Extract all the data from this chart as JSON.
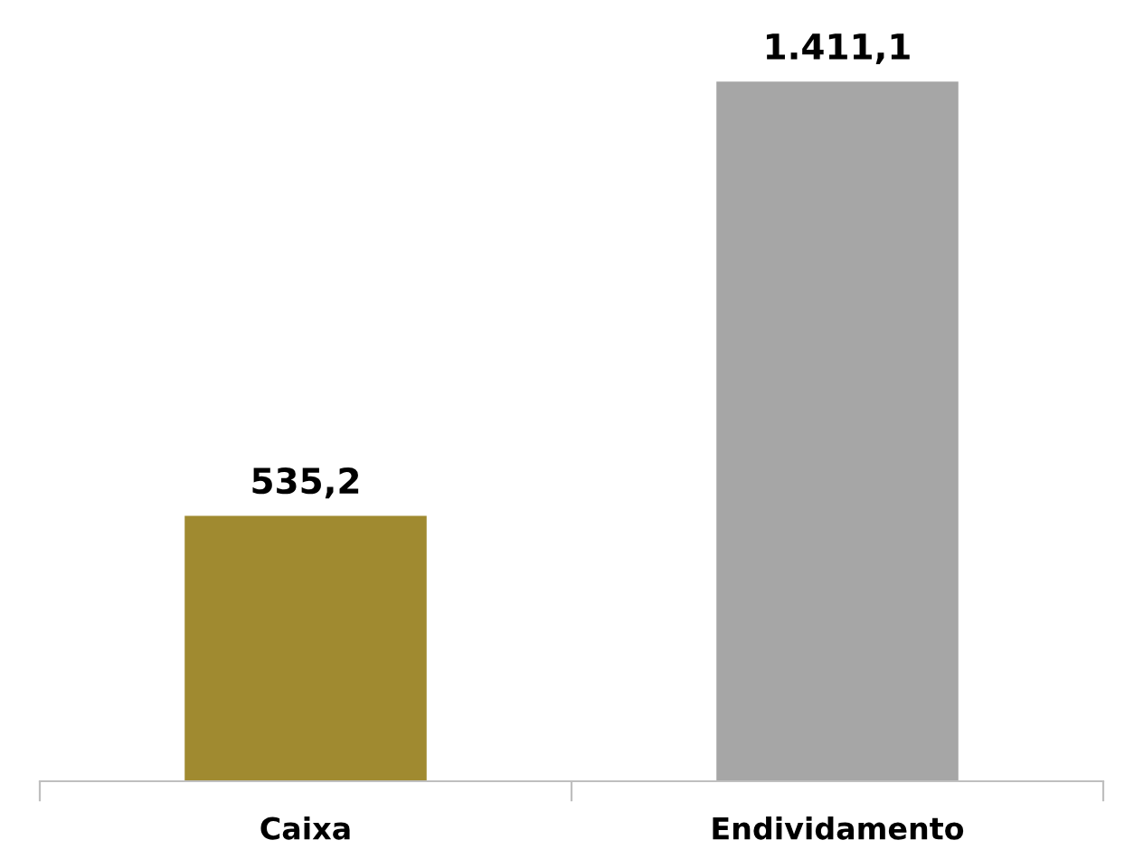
{
  "chart_data": {
    "type": "bar",
    "categories": [
      "Caixa",
      "Endividamento"
    ],
    "values": [
      535.2,
      1411.1
    ],
    "colors": [
      "#a08a30",
      "#a6a6a6"
    ],
    "value_labels": [
      "535,2",
      "1.411,1"
    ],
    "grid": false,
    "legend": false,
    "tick_labels": "x"
  }
}
